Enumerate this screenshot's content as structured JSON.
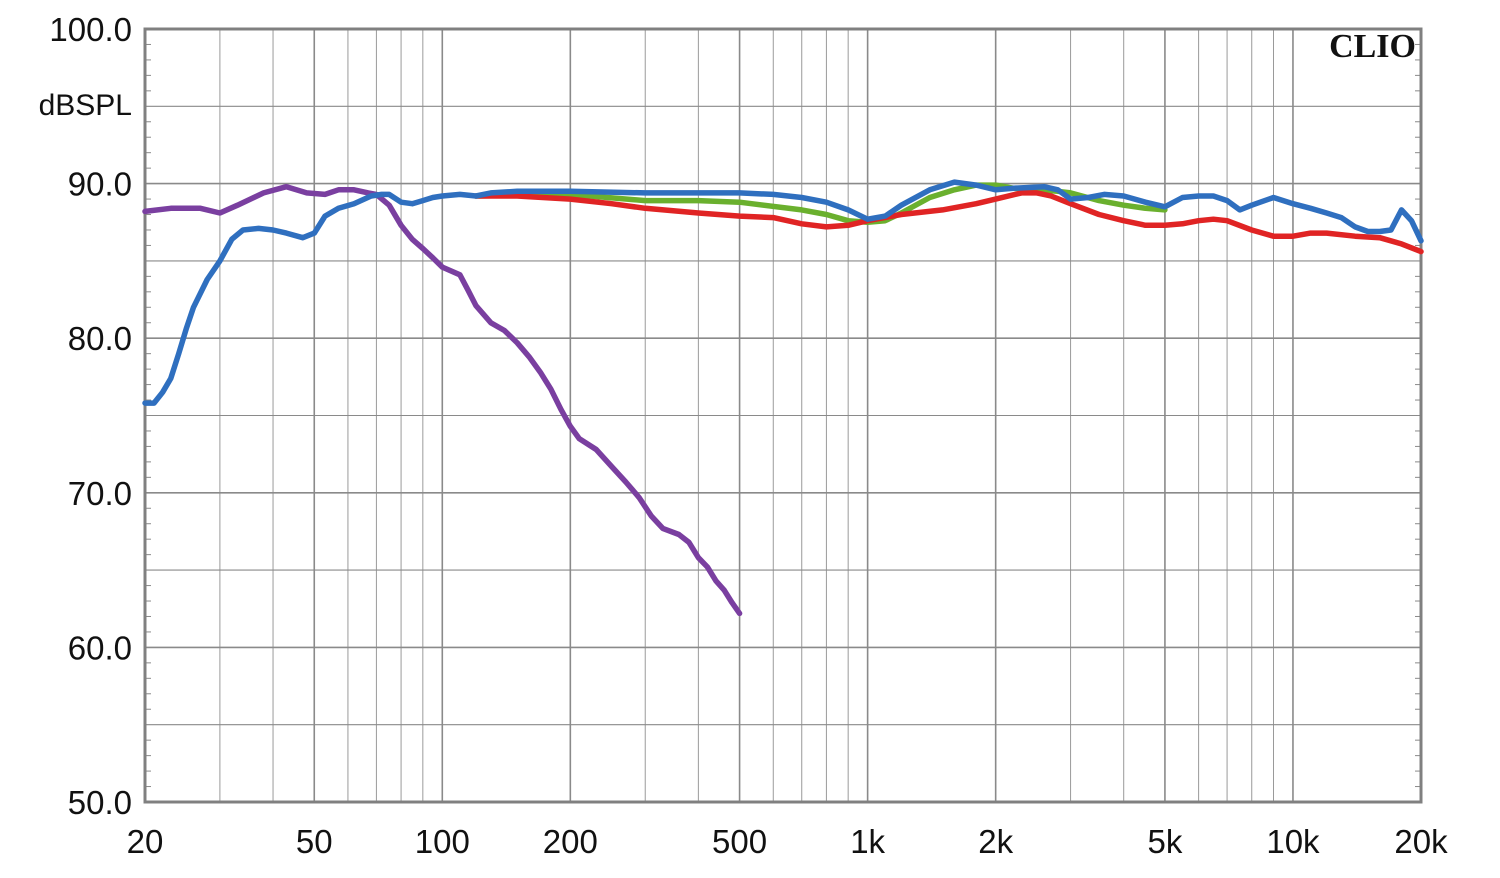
{
  "chart_data": {
    "type": "line",
    "brand": "CLIO",
    "ylabel": "dBSPL",
    "xscale": "log",
    "xlim": [
      20,
      20000
    ],
    "ylim": [
      50,
      100
    ],
    "grid": true,
    "x_ticks": [
      {
        "value": 20,
        "label": "20"
      },
      {
        "value": 50,
        "label": "50"
      },
      {
        "value": 100,
        "label": "100"
      },
      {
        "value": 200,
        "label": "200"
      },
      {
        "value": 500,
        "label": "500"
      },
      {
        "value": 1000,
        "label": "1k"
      },
      {
        "value": 2000,
        "label": "2k"
      },
      {
        "value": 5000,
        "label": "5k"
      },
      {
        "value": 10000,
        "label": "10k"
      },
      {
        "value": 20000,
        "label": "20k"
      }
    ],
    "y_ticks": [
      {
        "value": 100,
        "label": "100.0"
      },
      {
        "value": 90,
        "label": "90.0"
      },
      {
        "value": 80,
        "label": "80.0"
      },
      {
        "value": 70,
        "label": "70.0"
      },
      {
        "value": 60,
        "label": "60.0"
      },
      {
        "value": 50,
        "label": "50.0"
      }
    ],
    "series": [
      {
        "color": "#7a3fa0",
        "points": [
          [
            20,
            88.2
          ],
          [
            23,
            88.4
          ],
          [
            27,
            88.4
          ],
          [
            30,
            88.1
          ],
          [
            33,
            88.6
          ],
          [
            38,
            89.4
          ],
          [
            43,
            89.8
          ],
          [
            48,
            89.4
          ],
          [
            53,
            89.3
          ],
          [
            57,
            89.6
          ],
          [
            62,
            89.6
          ],
          [
            67,
            89.4
          ],
          [
            70,
            89.3
          ],
          [
            75,
            88.6
          ],
          [
            80,
            87.3
          ],
          [
            85,
            86.4
          ],
          [
            90,
            85.8
          ],
          [
            95,
            85.2
          ],
          [
            100,
            84.6
          ],
          [
            110,
            84.1
          ],
          [
            115,
            83.1
          ],
          [
            120,
            82.1
          ],
          [
            130,
            81.0
          ],
          [
            140,
            80.5
          ],
          [
            150,
            79.7
          ],
          [
            160,
            78.8
          ],
          [
            170,
            77.8
          ],
          [
            180,
            76.7
          ],
          [
            190,
            75.4
          ],
          [
            200,
            74.3
          ],
          [
            210,
            73.5
          ],
          [
            230,
            72.8
          ],
          [
            250,
            71.7
          ],
          [
            270,
            70.7
          ],
          [
            290,
            69.7
          ],
          [
            310,
            68.5
          ],
          [
            330,
            67.7
          ],
          [
            360,
            67.3
          ],
          [
            380,
            66.8
          ],
          [
            400,
            65.8
          ],
          [
            420,
            65.2
          ],
          [
            440,
            64.3
          ],
          [
            460,
            63.7
          ],
          [
            480,
            62.9
          ],
          [
            500,
            62.2
          ]
        ]
      },
      {
        "color": "#6ab02e",
        "points": [
          [
            120,
            89.2
          ],
          [
            200,
            89.3
          ],
          [
            300,
            88.9
          ],
          [
            400,
            88.9
          ],
          [
            500,
            88.8
          ],
          [
            700,
            88.3
          ],
          [
            800,
            88.0
          ],
          [
            900,
            87.6
          ],
          [
            1000,
            87.5
          ],
          [
            1100,
            87.6
          ],
          [
            1200,
            88.1
          ],
          [
            1400,
            89.1
          ],
          [
            1600,
            89.6
          ],
          [
            1800,
            89.9
          ],
          [
            2000,
            89.9
          ],
          [
            2200,
            89.7
          ],
          [
            2500,
            89.6
          ],
          [
            2800,
            89.5
          ],
          [
            3000,
            89.4
          ],
          [
            3500,
            88.9
          ],
          [
            4000,
            88.6
          ],
          [
            4500,
            88.4
          ],
          [
            5000,
            88.3
          ]
        ]
      },
      {
        "color": "#e02424",
        "points": [
          [
            120,
            89.2
          ],
          [
            150,
            89.2
          ],
          [
            200,
            89.0
          ],
          [
            250,
            88.7
          ],
          [
            300,
            88.4
          ],
          [
            400,
            88.1
          ],
          [
            500,
            87.9
          ],
          [
            600,
            87.8
          ],
          [
            700,
            87.4
          ],
          [
            800,
            87.2
          ],
          [
            900,
            87.3
          ],
          [
            1000,
            87.6
          ],
          [
            1200,
            88.0
          ],
          [
            1500,
            88.3
          ],
          [
            1800,
            88.7
          ],
          [
            2000,
            89.0
          ],
          [
            2300,
            89.4
          ],
          [
            2500,
            89.4
          ],
          [
            2700,
            89.2
          ],
          [
            3000,
            88.7
          ],
          [
            3500,
            88.0
          ],
          [
            4000,
            87.6
          ],
          [
            4500,
            87.3
          ],
          [
            5000,
            87.3
          ],
          [
            5500,
            87.4
          ],
          [
            6000,
            87.6
          ],
          [
            6500,
            87.7
          ],
          [
            7000,
            87.6
          ],
          [
            8000,
            87.0
          ],
          [
            9000,
            86.6
          ],
          [
            10000,
            86.6
          ],
          [
            11000,
            86.8
          ],
          [
            12000,
            86.8
          ],
          [
            14000,
            86.6
          ],
          [
            16000,
            86.5
          ],
          [
            18000,
            86.1
          ],
          [
            20000,
            85.6
          ]
        ]
      },
      {
        "color": "#2f6fbf",
        "points": [
          [
            20,
            75.8
          ],
          [
            21,
            75.8
          ],
          [
            22,
            76.5
          ],
          [
            23,
            77.4
          ],
          [
            24,
            79.0
          ],
          [
            25,
            80.6
          ],
          [
            26,
            82.0
          ],
          [
            28,
            83.8
          ],
          [
            30,
            85.0
          ],
          [
            32,
            86.4
          ],
          [
            34,
            87.0
          ],
          [
            37,
            87.1
          ],
          [
            40,
            87.0
          ],
          [
            43,
            86.8
          ],
          [
            47,
            86.5
          ],
          [
            50,
            86.8
          ],
          [
            53,
            87.9
          ],
          [
            57,
            88.4
          ],
          [
            62,
            88.7
          ],
          [
            68,
            89.2
          ],
          [
            72,
            89.3
          ],
          [
            75,
            89.3
          ],
          [
            80,
            88.8
          ],
          [
            85,
            88.7
          ],
          [
            90,
            88.9
          ],
          [
            95,
            89.1
          ],
          [
            100,
            89.2
          ],
          [
            110,
            89.3
          ],
          [
            120,
            89.2
          ],
          [
            130,
            89.4
          ],
          [
            150,
            89.5
          ],
          [
            200,
            89.5
          ],
          [
            300,
            89.4
          ],
          [
            400,
            89.4
          ],
          [
            500,
            89.4
          ],
          [
            600,
            89.3
          ],
          [
            700,
            89.1
          ],
          [
            800,
            88.8
          ],
          [
            900,
            88.3
          ],
          [
            1000,
            87.7
          ],
          [
            1100,
            87.9
          ],
          [
            1200,
            88.6
          ],
          [
            1400,
            89.6
          ],
          [
            1600,
            90.1
          ],
          [
            1800,
            89.9
          ],
          [
            2000,
            89.6
          ],
          [
            2200,
            89.7
          ],
          [
            2600,
            89.8
          ],
          [
            2800,
            89.6
          ],
          [
            3000,
            89.0
          ],
          [
            3300,
            89.1
          ],
          [
            3600,
            89.3
          ],
          [
            4000,
            89.2
          ],
          [
            4500,
            88.8
          ],
          [
            5000,
            88.5
          ],
          [
            5500,
            89.1
          ],
          [
            6000,
            89.2
          ],
          [
            6500,
            89.2
          ],
          [
            7000,
            88.9
          ],
          [
            7500,
            88.3
          ],
          [
            8000,
            88.6
          ],
          [
            9000,
            89.1
          ],
          [
            10000,
            88.7
          ],
          [
            11000,
            88.4
          ],
          [
            12000,
            88.1
          ],
          [
            13000,
            87.8
          ],
          [
            14000,
            87.2
          ],
          [
            15000,
            86.9
          ],
          [
            16000,
            86.9
          ],
          [
            17000,
            87.0
          ],
          [
            18000,
            88.3
          ],
          [
            19000,
            87.6
          ],
          [
            20000,
            86.3
          ]
        ]
      }
    ]
  }
}
